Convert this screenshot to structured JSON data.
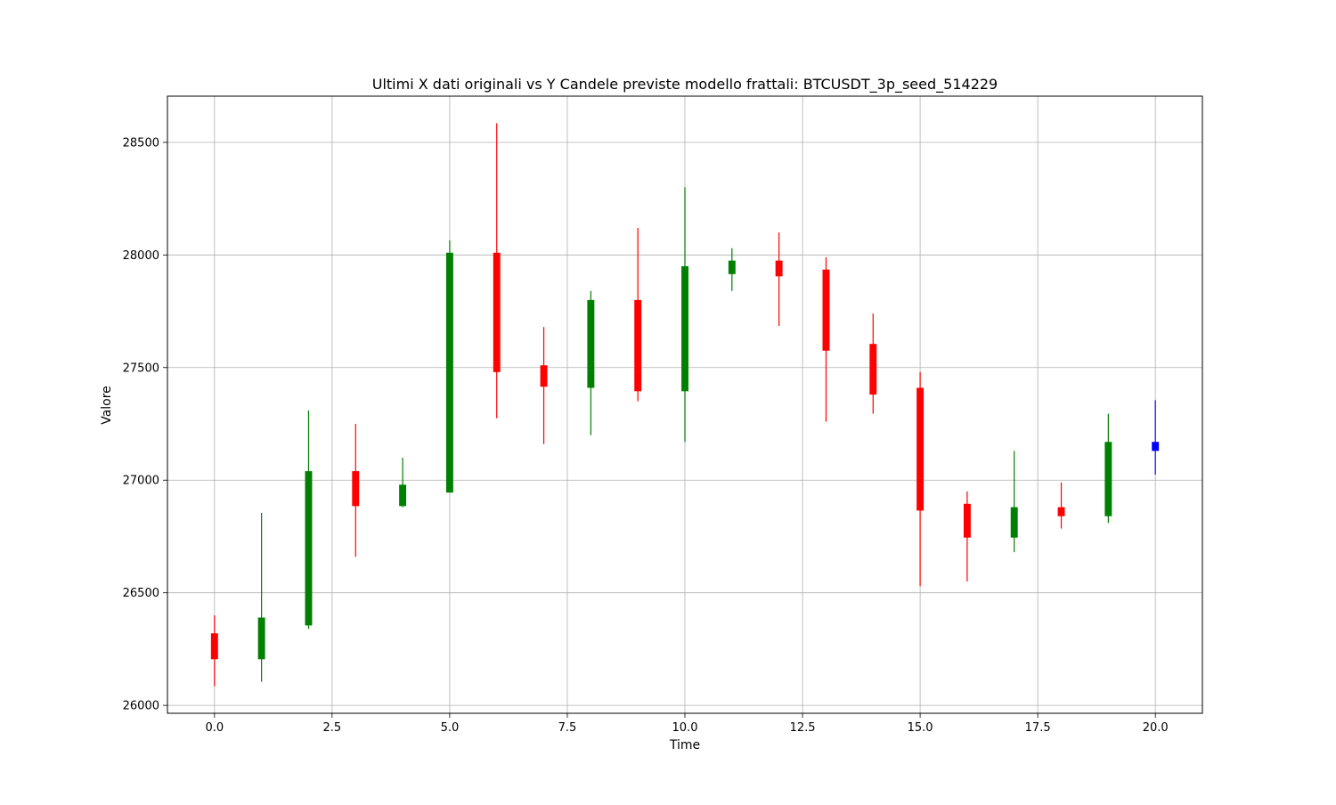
{
  "chart_data": {
    "type": "candlestick",
    "title": "Ultimi X dati originali vs Y Candele previste modello frattali: BTCUSDT_3p_seed_514229",
    "xlabel": "Time",
    "ylabel": "Valore",
    "xlim": [
      -1.0,
      21.0
    ],
    "ylim": [
      25965,
      28705
    ],
    "xticks": [
      0.0,
      2.5,
      5.0,
      7.5,
      10.0,
      12.5,
      15.0,
      17.5,
      20.0
    ],
    "xtick_labels": [
      "0.0",
      "2.5",
      "5.0",
      "7.5",
      "10.0",
      "12.5",
      "15.0",
      "17.5",
      "20.0"
    ],
    "yticks": [
      26000,
      26500,
      27000,
      27500,
      28000,
      28500
    ],
    "ytick_labels": [
      "26000",
      "26500",
      "27000",
      "27500",
      "28000",
      "28500"
    ],
    "grid": true,
    "colors": {
      "up": "#008000",
      "down": "#ff0000",
      "forecast": "#0000ff"
    },
    "candles": [
      {
        "x": 0,
        "open": 26320,
        "high": 26400,
        "low": 26085,
        "close": 26205,
        "kind": "down"
      },
      {
        "x": 1,
        "open": 26205,
        "high": 26855,
        "low": 26105,
        "close": 26390,
        "kind": "up"
      },
      {
        "x": 2,
        "open": 26355,
        "high": 27310,
        "low": 26340,
        "close": 27040,
        "kind": "up"
      },
      {
        "x": 3,
        "open": 27040,
        "high": 27250,
        "low": 26660,
        "close": 26885,
        "kind": "down"
      },
      {
        "x": 4,
        "open": 26885,
        "high": 27100,
        "low": 26880,
        "close": 26980,
        "kind": "up"
      },
      {
        "x": 5,
        "open": 26945,
        "high": 28065,
        "low": 26945,
        "close": 28010,
        "kind": "up"
      },
      {
        "x": 6,
        "open": 28010,
        "high": 28585,
        "low": 27275,
        "close": 27480,
        "kind": "down"
      },
      {
        "x": 7,
        "open": 27510,
        "high": 27680,
        "low": 27160,
        "close": 27415,
        "kind": "down"
      },
      {
        "x": 8,
        "open": 27410,
        "high": 27840,
        "low": 27200,
        "close": 27800,
        "kind": "up"
      },
      {
        "x": 9,
        "open": 27800,
        "high": 28120,
        "low": 27350,
        "close": 27395,
        "kind": "down"
      },
      {
        "x": 10,
        "open": 27395,
        "high": 28300,
        "low": 27170,
        "close": 27950,
        "kind": "up"
      },
      {
        "x": 11,
        "open": 27915,
        "high": 28030,
        "low": 27840,
        "close": 27975,
        "kind": "up"
      },
      {
        "x": 12,
        "open": 27975,
        "high": 28100,
        "low": 27685,
        "close": 27905,
        "kind": "down"
      },
      {
        "x": 13,
        "open": 27935,
        "high": 27990,
        "low": 27260,
        "close": 27575,
        "kind": "down"
      },
      {
        "x": 14,
        "open": 27605,
        "high": 27740,
        "low": 27295,
        "close": 27380,
        "kind": "down"
      },
      {
        "x": 15,
        "open": 27410,
        "high": 27480,
        "low": 26530,
        "close": 26865,
        "kind": "down"
      },
      {
        "x": 16,
        "open": 26895,
        "high": 26950,
        "low": 26550,
        "close": 26745,
        "kind": "down"
      },
      {
        "x": 17,
        "open": 26745,
        "high": 27130,
        "low": 26680,
        "close": 26880,
        "kind": "up"
      },
      {
        "x": 18,
        "open": 26880,
        "high": 26990,
        "low": 26785,
        "close": 26840,
        "kind": "down"
      },
      {
        "x": 19,
        "open": 26840,
        "high": 27295,
        "low": 26810,
        "close": 27170,
        "kind": "up"
      },
      {
        "x": 20,
        "open": 27170,
        "high": 27355,
        "low": 27025,
        "close": 27130,
        "kind": "forecast"
      }
    ]
  }
}
